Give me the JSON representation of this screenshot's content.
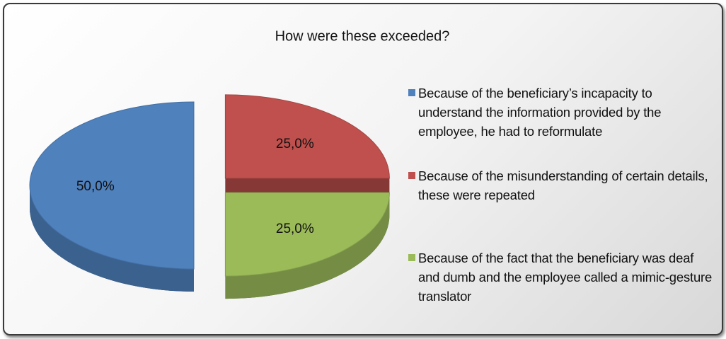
{
  "chart_data": {
    "type": "pie",
    "title": "How were these exceeded?",
    "categories": [
      "Because of the beneficiary’s incapacity to understand the information provided by the employee, he had to reformulate",
      "Because of the misunderstanding of certain details, these were repeated",
      "Because of the fact that the beneficiary was deaf and dumb and the employee called a mimic-gesture translator"
    ],
    "values": [
      50,
      25,
      25
    ],
    "value_labels": [
      "50,0%",
      "25,0%",
      "25,0%"
    ],
    "colors": [
      "#4f81bd",
      "#c0504d",
      "#9bbb59"
    ],
    "legend": "right"
  }
}
